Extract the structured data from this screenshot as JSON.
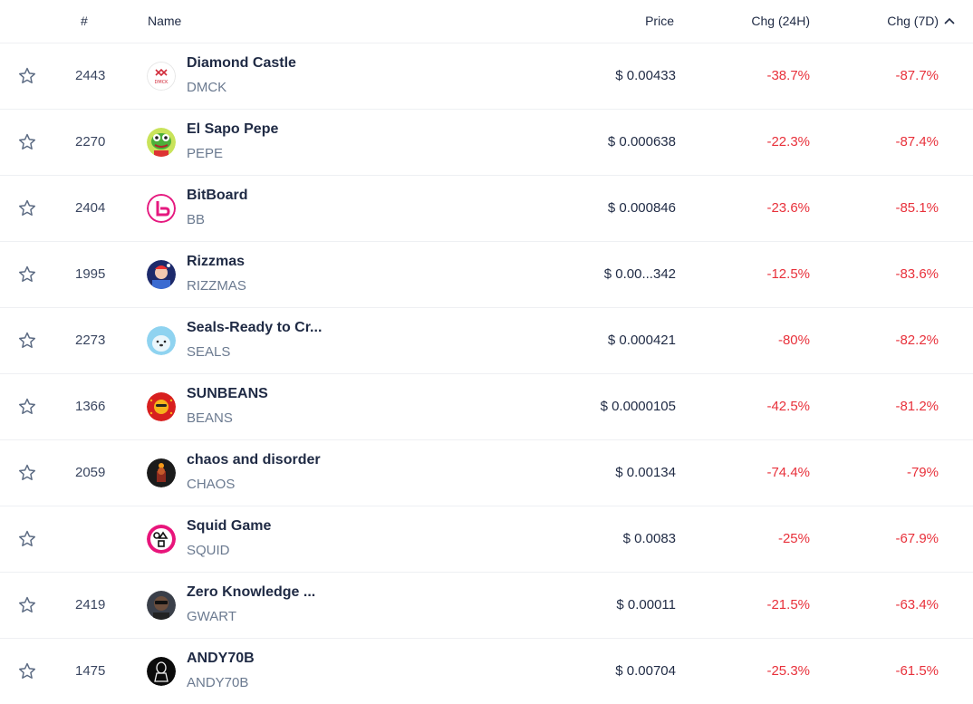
{
  "header": {
    "rank": "#",
    "name": "Name",
    "price": "Price",
    "chg_24h": "Chg (24H)",
    "chg_7d": "Chg (7D)"
  },
  "colors": {
    "negative": "#e8313b",
    "text": "#1f2a44",
    "muted": "#6b7a90"
  },
  "rows": [
    {
      "rank": "2443",
      "name": "Diamond Castle",
      "symbol": "DMCK",
      "price": "$ 0.00433",
      "chg_24h": "-38.7%",
      "chg_7d": "-87.7%",
      "logo": "dmck-logo"
    },
    {
      "rank": "2270",
      "name": "El Sapo Pepe",
      "symbol": "PEPE",
      "price": "$ 0.000638",
      "chg_24h": "-22.3%",
      "chg_7d": "-87.4%",
      "logo": "pepe-logo"
    },
    {
      "rank": "2404",
      "name": "BitBoard",
      "symbol": "BB",
      "price": "$ 0.000846",
      "chg_24h": "-23.6%",
      "chg_7d": "-85.1%",
      "logo": "bb-logo"
    },
    {
      "rank": "1995",
      "name": "Rizzmas",
      "symbol": "RIZZMAS",
      "price": "$ 0.00...342",
      "chg_24h": "-12.5%",
      "chg_7d": "-83.6%",
      "logo": "rizzmas-logo"
    },
    {
      "rank": "2273",
      "name": "Seals-Ready to Cr...",
      "symbol": "SEALS",
      "price": "$ 0.000421",
      "chg_24h": "-80%",
      "chg_7d": "-82.2%",
      "logo": "seals-logo"
    },
    {
      "rank": "1366",
      "name": "SUNBEANS",
      "symbol": "BEANS",
      "price": "$ 0.0000105",
      "chg_24h": "-42.5%",
      "chg_7d": "-81.2%",
      "logo": "beans-logo"
    },
    {
      "rank": "2059",
      "name": "chaos and disorder",
      "symbol": "CHAOS",
      "price": "$ 0.00134",
      "chg_24h": "-74.4%",
      "chg_7d": "-79%",
      "logo": "chaos-logo"
    },
    {
      "rank": "",
      "name": "Squid Game",
      "symbol": "SQUID",
      "price": "$ 0.0083",
      "chg_24h": "-25%",
      "chg_7d": "-67.9%",
      "logo": "squid-logo"
    },
    {
      "rank": "2419",
      "name": "Zero Knowledge ...",
      "symbol": "GWART",
      "price": "$ 0.00011",
      "chg_24h": "-21.5%",
      "chg_7d": "-63.4%",
      "logo": "gwart-logo"
    },
    {
      "rank": "1475",
      "name": "ANDY70B",
      "symbol": "ANDY70B",
      "price": "$ 0.00704",
      "chg_24h": "-25.3%",
      "chg_7d": "-61.5%",
      "logo": "andy-logo"
    }
  ]
}
